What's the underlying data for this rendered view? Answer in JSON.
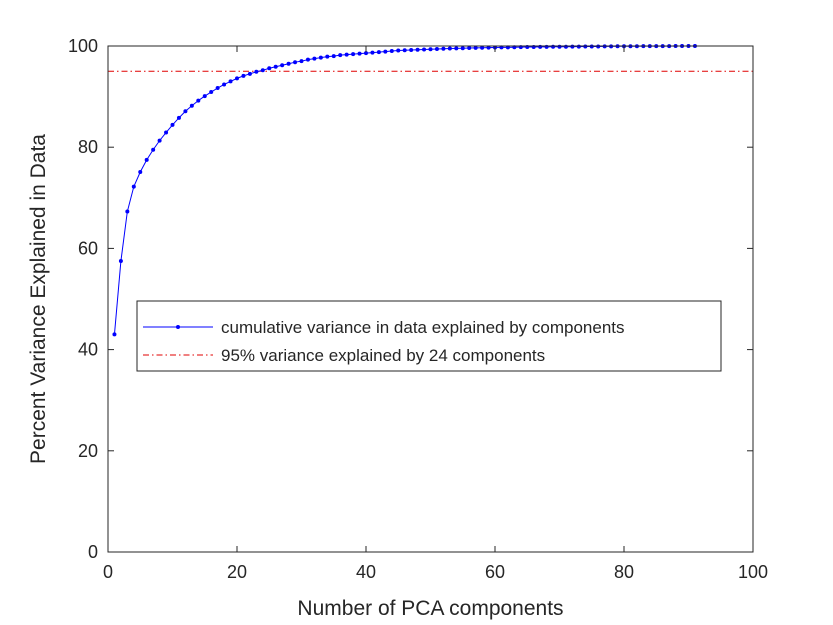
{
  "chart_data": {
    "type": "line",
    "xlabel": "Number of PCA components",
    "ylabel": "Percent Variance Explained in Data",
    "xlim": [
      0,
      100
    ],
    "ylim": [
      0,
      100
    ],
    "x_ticks": [
      0,
      20,
      40,
      60,
      80,
      100
    ],
    "y_ticks": [
      0,
      20,
      40,
      60,
      80,
      100
    ],
    "x_tick_labels": [
      "0",
      "20",
      "40",
      "60",
      "80",
      "100"
    ],
    "y_tick_labels": [
      "0",
      "20",
      "40",
      "60",
      "80",
      "100"
    ],
    "grid": false,
    "legend_position": "center-left",
    "series": [
      {
        "name": "cumulative variance in data explained by components",
        "color": "#0000ff",
        "marker": "dot",
        "line_style": "solid",
        "x": [
          1,
          2,
          3,
          4,
          5,
          6,
          7,
          8,
          9,
          10,
          11,
          12,
          13,
          14,
          15,
          16,
          17,
          18,
          19,
          20,
          21,
          22,
          23,
          24,
          25,
          26,
          27,
          28,
          29,
          30,
          31,
          32,
          33,
          34,
          35,
          36,
          37,
          38,
          39,
          40,
          41,
          42,
          43,
          44,
          45,
          46,
          47,
          48,
          49,
          50,
          51,
          52,
          53,
          54,
          55,
          56,
          57,
          58,
          59,
          60,
          61,
          62,
          63,
          64,
          65,
          66,
          67,
          68,
          69,
          70,
          71,
          72,
          73,
          74,
          75,
          76,
          77,
          78,
          79,
          80,
          81,
          82,
          83,
          84,
          85,
          86,
          87,
          88,
          89,
          90,
          91
        ],
        "y": [
          43.0,
          57.5,
          67.3,
          72.2,
          75.1,
          77.5,
          79.5,
          81.3,
          82.9,
          84.4,
          85.8,
          87.1,
          88.2,
          89.2,
          90.1,
          90.9,
          91.7,
          92.4,
          93.0,
          93.6,
          94.1,
          94.5,
          94.9,
          95.2,
          95.6,
          95.9,
          96.2,
          96.5,
          96.8,
          97.0,
          97.3,
          97.5,
          97.7,
          97.9,
          98.0,
          98.2,
          98.3,
          98.4,
          98.5,
          98.6,
          98.7,
          98.8,
          98.9,
          99.0,
          99.1,
          99.15,
          99.2,
          99.25,
          99.3,
          99.35,
          99.4,
          99.45,
          99.5,
          99.53,
          99.56,
          99.6,
          99.62,
          99.65,
          99.68,
          99.7,
          99.72,
          99.74,
          99.76,
          99.78,
          99.8,
          99.81,
          99.82,
          99.83,
          99.84,
          99.85,
          99.86,
          99.87,
          99.88,
          99.89,
          99.9,
          99.91,
          99.92,
          99.93,
          99.94,
          99.95,
          99.96,
          99.96,
          99.97,
          99.97,
          99.98,
          99.98,
          99.98,
          99.99,
          99.99,
          99.99,
          100.0
        ]
      },
      {
        "name": "95% variance explained by 24 components",
        "color": "#e00000",
        "marker": "none",
        "line_style": "dash-dot",
        "x": [
          0,
          100
        ],
        "y": [
          95,
          95
        ]
      }
    ]
  }
}
